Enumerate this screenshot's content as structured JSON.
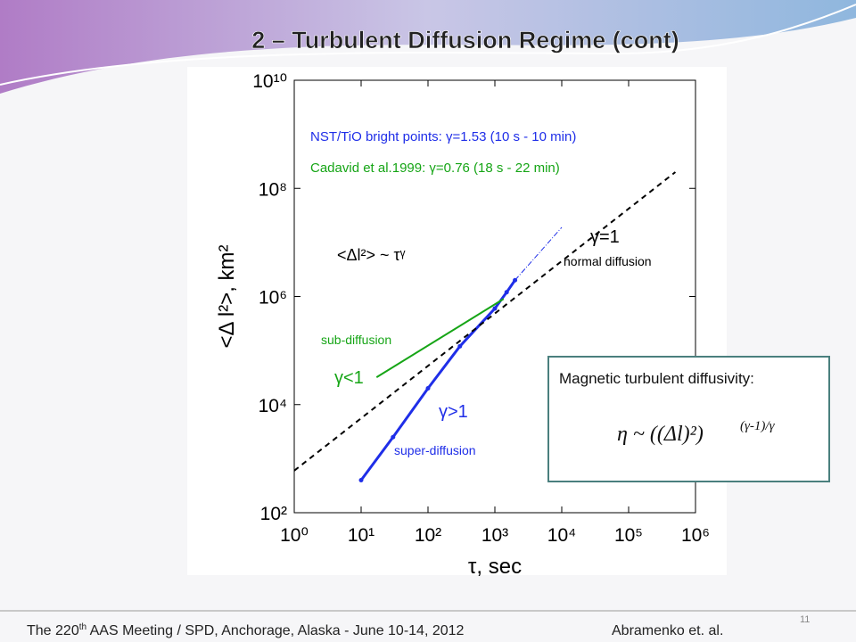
{
  "header": {
    "title": "2 – Turbulent Diffusion Regime (cont)"
  },
  "chart_data": {
    "type": "line",
    "xlabel": "τ, sec",
    "ylabel": "<Δ l²>, km²",
    "xscale": "log",
    "yscale": "log",
    "xlim": [
      1,
      1000000
    ],
    "ylim": [
      100,
      10000000000
    ],
    "xticks": [
      {
        "value": 1,
        "label": "10⁰"
      },
      {
        "value": 10,
        "label": "10¹"
      },
      {
        "value": 100,
        "label": "10²"
      },
      {
        "value": 1000,
        "label": "10³"
      },
      {
        "value": 10000,
        "label": "10⁴"
      },
      {
        "value": 100000,
        "label": "10⁵"
      },
      {
        "value": 1000000,
        "label": "10⁶"
      }
    ],
    "yticks": [
      {
        "value": 100,
        "label": "10²"
      },
      {
        "value": 10000,
        "label": "10⁴"
      },
      {
        "value": 1000000,
        "label": "10⁶"
      },
      {
        "value": 100000000,
        "label": "10⁸"
      },
      {
        "value": 10000000000,
        "label": "10¹⁰"
      }
    ],
    "grid": false,
    "series": [
      {
        "name": "NST/TiO bright points: γ=1.53 (10 s - 10 min)",
        "color": "#1f2ee8",
        "markers": true,
        "x": [
          10,
          30,
          100,
          300,
          1000,
          1500,
          2000
        ],
        "values": [
          400,
          2500,
          20000,
          120000,
          600000,
          1200000,
          2000000
        ]
      },
      {
        "name": "Cadavid et al.1999: γ=0.76 (18 s - 22 min)",
        "color": "#16a516",
        "x": [
          17,
          1350
        ],
        "values": [
          32000,
          900000
        ]
      },
      {
        "color": "#000000",
        "dash": "6,5",
        "x": [
          1,
          500000
        ],
        "values": [
          600,
          200000000
        ]
      },
      {
        "color": "#1f2ee8",
        "dash": "6,2,1,2",
        "x": [
          2000,
          10000
        ],
        "values": [
          2000000,
          19000000
        ]
      }
    ],
    "annotations": [
      {
        "text": "<Δl²>  ~  τᵞ",
        "color": "#000000"
      },
      {
        "text": "γ=1",
        "color": "#000000"
      },
      {
        "text": "normal diffusion",
        "color": "#000000"
      },
      {
        "text": "sub-diffusion",
        "color": "#16a516"
      },
      {
        "text": "γ<1",
        "color": "#16a516"
      },
      {
        "text": "γ>1",
        "color": "#1f2ee8"
      },
      {
        "text": "super-diffusion",
        "color": "#1f2ee8"
      }
    ]
  },
  "textbox": {
    "title": "Magnetic turbulent diffusivity:",
    "formula": "η ~ ((Δl)²)",
    "exponent": "(γ-1)/γ"
  },
  "footer": {
    "pre": "The 220",
    "sup": "th",
    "post": " AAS Meeting / SPD, Anchorage, Alaska  -  June 10-14, 2012",
    "author": "Abramenko et. al.",
    "page": "11"
  }
}
